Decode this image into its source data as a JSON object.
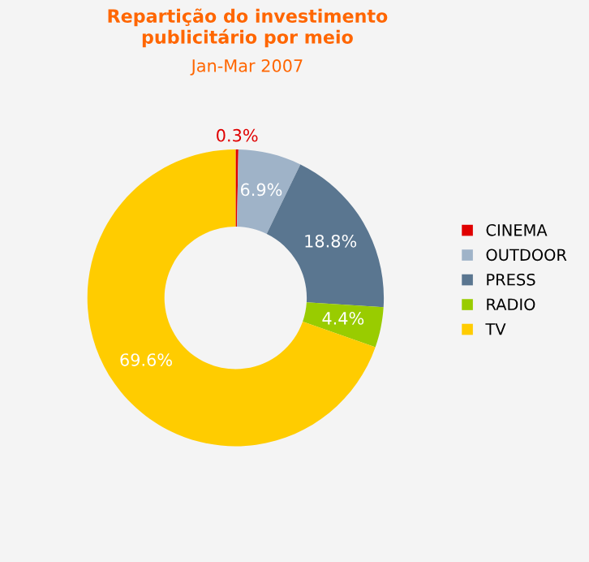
{
  "chart_data": {
    "type": "donut",
    "title": "Repartição do investimento\npublicitário por meio",
    "subtitle": "Jan-Mar 2007",
    "categories": [
      "CINEMA",
      "OUTDOOR",
      "PRESS",
      "RADIO",
      "TV"
    ],
    "values": [
      0.3,
      6.9,
      18.8,
      4.4,
      69.6
    ],
    "colors": [
      "#e00000",
      "#9fb3c8",
      "#5a7690",
      "#99cc00",
      "#ffcc00"
    ],
    "value_labels": [
      "0.3%",
      "6.9%",
      "18.8%",
      "4.4%",
      "69.6%"
    ],
    "legend": "right"
  }
}
